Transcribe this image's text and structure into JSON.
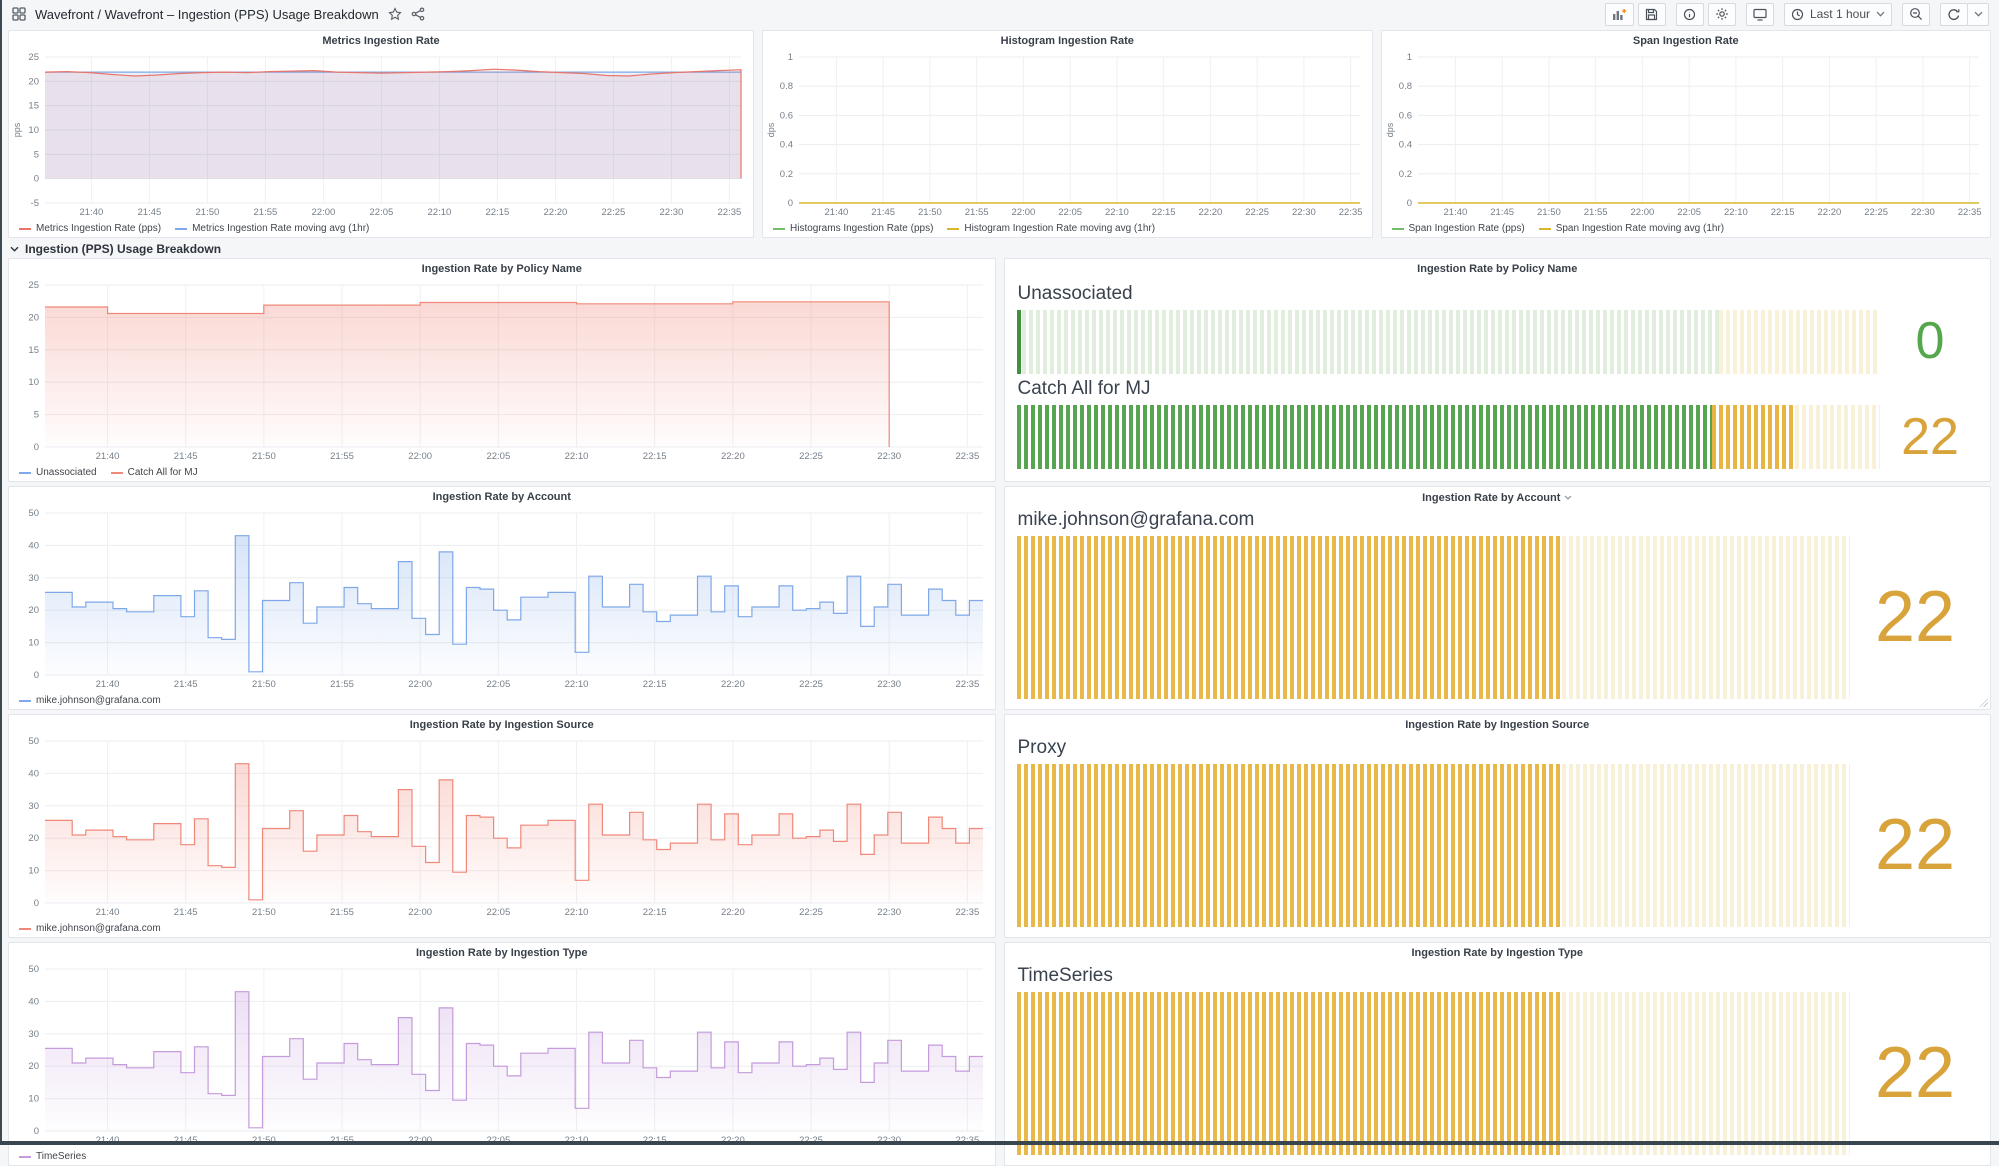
{
  "nav": {
    "breadcrumb": "Wavefront / Wavefront – Ingestion (PPS) Usage Breakdown",
    "time_range_label": "Last 1 hour",
    "toolbar_icons": [
      "add-panel",
      "save-dashboard",
      "dashboard-insights",
      "dashboard-settings",
      "cycle-view-mode",
      "time-range-picker",
      "zoom-out-time-range",
      "refresh-dashboard",
      "refresh-interval-dropdown"
    ],
    "title_icons": [
      "dashboards-grid",
      "star",
      "share"
    ]
  },
  "section": {
    "label": "Ingestion (PPS) Usage Breakdown"
  },
  "x_ticks": [
    "21:40",
    "21:45",
    "21:50",
    "21:55",
    "22:00",
    "22:05",
    "22:10",
    "22:15",
    "22:20",
    "22:25",
    "22:30",
    "22:35"
  ],
  "colors": {
    "red_line": "#E8756C",
    "blue_line": "#7FA8E8",
    "salmon_line": "#F0887A",
    "purple_line": "#C49BDB",
    "green_series": "#73BF69",
    "yellow_series": "#D8B72E",
    "lit_green": "#57A552",
    "lit_green_dark": "#3F9140",
    "unlit_green": "#E1EEDE",
    "lit_amber": "#E6B544",
    "unlit_amber": "#F9F0D8",
    "value_green": "#56A64B",
    "value_amber": "#D9A33C"
  },
  "chart_data": [
    {
      "id": "metrics",
      "type": "line",
      "title": "Metrics Ingestion Rate",
      "ylabel": "pps",
      "yticks": [
        -5,
        0,
        5,
        10,
        15,
        20,
        25
      ],
      "ymin": -5,
      "ymax": 25,
      "series": [
        {
          "name": "Metrics Ingestion Rate moving avg (1hr)",
          "color": "#7FA8E8",
          "fill": "rgba(87,148,242,0.13)",
          "values": [
            21.9,
            21.9
          ]
        },
        {
          "name": "Metrics Ingestion Rate (pps)",
          "color": "#E8756C",
          "fill": "rgba(230,90,80,0.10)",
          "end_drop": true,
          "values": [
            21.9,
            22.0,
            21.8,
            21.4,
            21.1,
            21.3,
            21.6,
            21.8,
            21.9,
            21.8,
            22.0,
            22.1,
            22.2,
            21.9,
            21.8,
            21.7,
            21.8,
            21.9,
            22.0,
            22.2,
            22.5,
            22.3,
            22.0,
            21.8,
            21.6,
            21.2,
            21.1,
            21.5,
            21.8,
            22.0,
            22.2,
            22.4
          ]
        }
      ],
      "legend": [
        {
          "label": "Metrics Ingestion Rate (pps)",
          "color": "#E8756C"
        },
        {
          "label": "Metrics Ingestion Rate moving avg (1hr)",
          "color": "#7FA8E8"
        }
      ]
    },
    {
      "id": "histogram",
      "type": "flat",
      "title": "Histogram Ingestion Rate",
      "ylabel": "dps",
      "yticks": [
        0,
        0.2,
        0.4,
        0.6,
        0.8,
        1.0
      ],
      "ymin": 0,
      "ymax": 1,
      "flat_value": 0,
      "flat_color": "#D8B72E",
      "legend": [
        {
          "label": "Histograms Ingestion Rate (pps)",
          "color": "#73BF69"
        },
        {
          "label": "Histogram Ingestion Rate moving avg (1hr)",
          "color": "#D8B72E"
        }
      ]
    },
    {
      "id": "span",
      "type": "flat",
      "title": "Span Ingestion Rate",
      "ylabel": "dps",
      "yticks": [
        0,
        0.2,
        0.4,
        0.6,
        0.8,
        1.0
      ],
      "ymin": 0,
      "ymax": 1,
      "flat_value": 0,
      "flat_color": "#D8B72E",
      "legend": [
        {
          "label": "Span Ingestion Rate (pps)",
          "color": "#73BF69"
        },
        {
          "label": "Span Ingestion Rate moving avg (1hr)",
          "color": "#D8B72E"
        }
      ]
    },
    {
      "id": "policy",
      "type": "step",
      "title": "Ingestion Rate by Policy Name",
      "yticks": [
        0,
        5,
        10,
        15,
        20,
        25
      ],
      "ymin": 0,
      "ymax": 25,
      "color": "#F0887A",
      "end_drop": true,
      "steps": [
        {
          "to": 0.0667,
          "v": 21.6
        },
        {
          "to": 0.2333,
          "v": 20.6
        },
        {
          "to": 0.4,
          "v": 21.9
        },
        {
          "to": 0.5667,
          "v": 22.3
        },
        {
          "to": 0.7333,
          "v": 22.1
        },
        {
          "to": 0.9,
          "v": 22.4
        }
      ],
      "legend": [
        {
          "label": "Unassociated",
          "color": "#7FA8E8"
        },
        {
          "label": "Catch All for MJ",
          "color": "#F0887A"
        }
      ]
    },
    {
      "id": "account",
      "type": "step",
      "title": "Ingestion Rate by Account",
      "yticks": [
        0,
        10,
        20,
        30,
        40,
        50
      ],
      "ymin": 0,
      "ymax": 50,
      "color": "#7FA8E8",
      "values": [
        25.5,
        25.5,
        21,
        22.5,
        22.5,
        20.5,
        19.5,
        19.5,
        24.5,
        24.5,
        18,
        26,
        11.5,
        11,
        43,
        1,
        23,
        23,
        28.5,
        16,
        21,
        21,
        27,
        22,
        20.5,
        20.5,
        35,
        17.5,
        12.5,
        38,
        9.5,
        27,
        26.5,
        20,
        17,
        24,
        24,
        25.5,
        25.5,
        7,
        30.5,
        21,
        21,
        28,
        19.5,
        16.5,
        18.5,
        18.5,
        30.5,
        19.5,
        27.5,
        18,
        21,
        21,
        27.5,
        20,
        20.5,
        22.5,
        19,
        30.5,
        15,
        21,
        28,
        18.5,
        18.5,
        26.5,
        23,
        18.5,
        23
      ],
      "legend": [
        {
          "label": "mike.johnson@grafana.com",
          "color": "#7FA8E8"
        }
      ]
    },
    {
      "id": "source",
      "type": "step",
      "title": "Ingestion Rate by Ingestion Source",
      "yticks": [
        0,
        10,
        20,
        30,
        40,
        50
      ],
      "ymin": 0,
      "ymax": 50,
      "color": "#F0887A",
      "values_ref": "account",
      "legend": [
        {
          "label": "mike.johnson@grafana.com",
          "color": "#F0887A"
        }
      ]
    },
    {
      "id": "type",
      "type": "step",
      "title": "Ingestion Rate by Ingestion Type",
      "yticks": [
        0,
        10,
        20,
        30,
        40,
        50
      ],
      "ymin": 0,
      "ymax": 50,
      "color": "#C49BDB",
      "values_ref": "account",
      "legend": [
        {
          "label": "TimeSeries",
          "color": "#C49BDB"
        }
      ]
    },
    {
      "id": "policy_gauge",
      "type": "bargauge",
      "title": "Ingestion Rate by Policy Name",
      "rows": [
        {
          "label": "Unassociated",
          "value": "0",
          "value_color": "#56A64B",
          "zones": [
            {
              "w": 0.006,
              "c": "#3F9140"
            },
            {
              "w": 0.808,
              "c": "#E1EEDE"
            },
            {
              "w": 0.186,
              "c": "#F9F0D8"
            }
          ]
        },
        {
          "label": "Catch All for MJ",
          "value": "22",
          "value_color": "#D9A33C",
          "zones": [
            {
              "w": 0.806,
              "c": "#57A552"
            },
            {
              "w": 0.096,
              "c": "#E6B544"
            },
            {
              "w": 0.098,
              "c": "#F9F0D8"
            }
          ]
        }
      ]
    },
    {
      "id": "account_gauge",
      "type": "bargauge",
      "title": "Ingestion Rate by Account",
      "title_caret": true,
      "rows": [
        {
          "label": "mike.johnson@grafana.com",
          "value": "22",
          "value_color": "#D9A33C",
          "zones": [
            {
              "w": 0.655,
              "c": "#E8B84B"
            },
            {
              "w": 0.345,
              "c": "#F9F0D8"
            }
          ]
        }
      ]
    },
    {
      "id": "source_gauge",
      "type": "bargauge",
      "title": "Ingestion Rate by Ingestion Source",
      "rows": [
        {
          "label": "Proxy",
          "value": "22",
          "value_color": "#D9A33C",
          "zones": [
            {
              "w": 0.655,
              "c": "#E8B84B"
            },
            {
              "w": 0.345,
              "c": "#F9F0D8"
            }
          ]
        }
      ]
    },
    {
      "id": "type_gauge",
      "type": "bargauge",
      "title": "Ingestion Rate by Ingestion Type",
      "rows": [
        {
          "label": "TimeSeries",
          "value": "22",
          "value_color": "#D9A33C",
          "zones": [
            {
              "w": 0.655,
              "c": "#E8B84B"
            },
            {
              "w": 0.345,
              "c": "#F9F0D8"
            }
          ]
        }
      ]
    }
  ]
}
